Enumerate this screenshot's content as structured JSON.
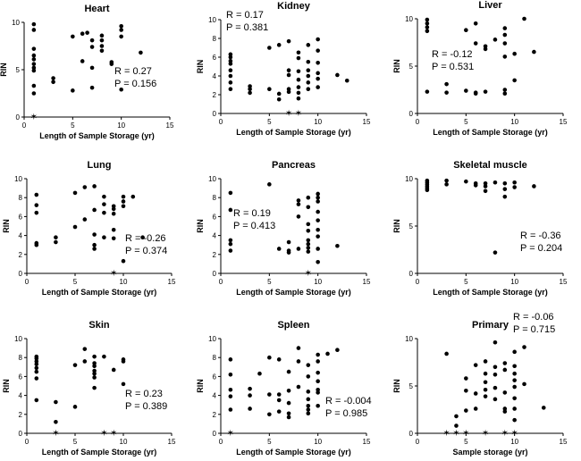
{
  "figure": {
    "background": "#ffffff",
    "point_color": "#000000",
    "zero_marker_color": "#e31a1c"
  },
  "chart_data": [
    {
      "type": "scatter",
      "title": "Heart",
      "xlabel": "Length of Sample Storage (yr)",
      "ylabel": "RIN",
      "xlim": [
        0,
        15
      ],
      "ylim": [
        0,
        10
      ],
      "xticks": [
        0,
        5,
        10,
        15
      ],
      "yticks": [
        0,
        5,
        10
      ],
      "annotation": [
        "R = 0.27",
        "P = 0.156"
      ],
      "points": [
        [
          1,
          9.8
        ],
        [
          1,
          9.2
        ],
        [
          1,
          7.2
        ],
        [
          1,
          6.5
        ],
        [
          1,
          6.1
        ],
        [
          1,
          5.6
        ],
        [
          1,
          5.2
        ],
        [
          1,
          4.9
        ],
        [
          1,
          3.3
        ],
        [
          1,
          2.5
        ],
        [
          3,
          4.1
        ],
        [
          3,
          3.7
        ],
        [
          5,
          8.5
        ],
        [
          5,
          2.8
        ],
        [
          6,
          8.8
        ],
        [
          6,
          5.9
        ],
        [
          6.5,
          8.9
        ],
        [
          7,
          8.1
        ],
        [
          7,
          7.4
        ],
        [
          7,
          5.2
        ],
        [
          7,
          3.1
        ],
        [
          8,
          8.6
        ],
        [
          8,
          8.1
        ],
        [
          8,
          7.5
        ],
        [
          8,
          7.0
        ],
        [
          9,
          5.8
        ],
        [
          9,
          5.6
        ],
        [
          10,
          9.6
        ],
        [
          10,
          9.2
        ],
        [
          10,
          8.5
        ],
        [
          10,
          2.9
        ],
        [
          12,
          6.8
        ]
      ],
      "zero_points": [
        1
      ]
    },
    {
      "type": "scatter",
      "title": "Kidney",
      "xlabel": "Length of Sample Storage (yr)",
      "ylabel": "RIN",
      "xlim": [
        0,
        15
      ],
      "ylim": [
        0,
        10
      ],
      "xticks": [
        0,
        5,
        10,
        15
      ],
      "yticks": [
        0,
        2,
        4,
        6,
        8,
        10
      ],
      "annotation": [
        "R = 0.17",
        "P = 0.381"
      ],
      "points": [
        [
          1,
          6.3
        ],
        [
          1,
          6.0
        ],
        [
          1,
          5.6
        ],
        [
          1,
          5.3
        ],
        [
          1,
          4.6
        ],
        [
          1,
          4.0
        ],
        [
          1,
          3.3
        ],
        [
          1,
          2.6
        ],
        [
          3,
          2.9
        ],
        [
          3,
          2.6
        ],
        [
          3,
          2.2
        ],
        [
          5,
          2.6
        ],
        [
          5,
          7.0
        ],
        [
          6,
          7.3
        ],
        [
          6,
          1.5
        ],
        [
          6,
          2.1
        ],
        [
          7,
          7.7
        ],
        [
          7,
          4.6
        ],
        [
          7,
          4.1
        ],
        [
          7,
          2.6
        ],
        [
          7,
          2.3
        ],
        [
          8,
          6.5
        ],
        [
          8,
          5.9
        ],
        [
          8,
          4.5
        ],
        [
          8,
          3.6
        ],
        [
          8,
          2.8
        ],
        [
          8,
          2.2
        ],
        [
          8,
          1.6
        ],
        [
          9,
          7.3
        ],
        [
          9,
          5.5
        ],
        [
          9,
          4.6
        ],
        [
          9,
          4.0
        ],
        [
          9,
          3.3
        ],
        [
          9,
          2.6
        ],
        [
          10,
          7.9
        ],
        [
          10,
          6.7
        ],
        [
          10,
          5.4
        ],
        [
          10,
          4.3
        ],
        [
          10,
          3.7
        ],
        [
          10,
          2.8
        ],
        [
          12,
          4.1
        ],
        [
          13,
          3.5
        ]
      ],
      "zero_points": [
        7,
        8
      ]
    },
    {
      "type": "scatter",
      "title": "Liver",
      "xlabel": "Length of Sample Storage (yr)",
      "ylabel": "RIN",
      "xlim": [
        0,
        15
      ],
      "ylim": [
        0,
        10
      ],
      "xticks": [
        0,
        5,
        10,
        15
      ],
      "yticks": [
        0,
        5,
        10
      ],
      "annotation": [
        "R = -0.12",
        "P = 0.531"
      ],
      "points": [
        [
          1,
          9.9
        ],
        [
          1,
          9.5
        ],
        [
          1,
          9.1
        ],
        [
          1,
          8.7
        ],
        [
          1,
          2.3
        ],
        [
          3,
          3.1
        ],
        [
          3,
          2.2
        ],
        [
          5,
          8.8
        ],
        [
          5,
          2.4
        ],
        [
          6,
          9.5
        ],
        [
          6,
          7.4
        ],
        [
          6,
          2.1
        ],
        [
          6,
          2.2
        ],
        [
          7,
          7.1
        ],
        [
          7,
          6.8
        ],
        [
          7,
          2.3
        ],
        [
          8,
          7.8
        ],
        [
          9,
          9.0
        ],
        [
          9,
          8.3
        ],
        [
          9,
          7.4
        ],
        [
          9,
          6.0
        ],
        [
          9,
          2.5
        ],
        [
          9,
          2.1
        ],
        [
          10,
          6.3
        ],
        [
          10,
          3.5
        ],
        [
          11,
          10.0
        ],
        [
          12,
          6.5
        ]
      ],
      "zero_points": []
    },
    {
      "type": "scatter",
      "title": "Lung",
      "xlabel": "Length of Sample Storage (yr)",
      "ylabel": "RIN",
      "xlim": [
        0,
        15
      ],
      "ylim": [
        0,
        10
      ],
      "xticks": [
        0,
        5,
        10,
        15
      ],
      "yticks": [
        0,
        2,
        4,
        6,
        8,
        10
      ],
      "annotation": [
        "R = -0.26",
        "P = 0.374"
      ],
      "points": [
        [
          1,
          8.3
        ],
        [
          1,
          7.2
        ],
        [
          1,
          6.4
        ],
        [
          1,
          3.2
        ],
        [
          1,
          3.0
        ],
        [
          3,
          3.8
        ],
        [
          3,
          3.3
        ],
        [
          5,
          8.5
        ],
        [
          5,
          4.9
        ],
        [
          6,
          9.1
        ],
        [
          6,
          5.7
        ],
        [
          7,
          9.2
        ],
        [
          7,
          6.7
        ],
        [
          7,
          4.1
        ],
        [
          7,
          3.0
        ],
        [
          7,
          2.6
        ],
        [
          8,
          8.1
        ],
        [
          8,
          7.3
        ],
        [
          8,
          6.4
        ],
        [
          8,
          3.8
        ],
        [
          9,
          7.1
        ],
        [
          9,
          6.8
        ],
        [
          9,
          6.3
        ],
        [
          9,
          4.6
        ],
        [
          9,
          3.7
        ],
        [
          10,
          8.1
        ],
        [
          10,
          7.6
        ],
        [
          10,
          7.1
        ],
        [
          10,
          1.3
        ],
        [
          11,
          8.1
        ],
        [
          12,
          3.8
        ]
      ],
      "zero_points": [
        9
      ]
    },
    {
      "type": "scatter",
      "title": "Pancreas",
      "xlabel": "Length of Sample Storage (yr)",
      "ylabel": "RIN",
      "xlim": [
        0,
        15
      ],
      "ylim": [
        0,
        10
      ],
      "xticks": [
        0,
        5,
        10,
        15
      ],
      "yticks": [
        0,
        2,
        4,
        6,
        8,
        10
      ],
      "annotation": [
        "R = 0.19",
        "P = 0.413"
      ],
      "points": [
        [
          1,
          8.5
        ],
        [
          1,
          6.7
        ],
        [
          1,
          3.5
        ],
        [
          1,
          3.1
        ],
        [
          1,
          2.4
        ],
        [
          5,
          9.4
        ],
        [
          6,
          2.6
        ],
        [
          7,
          3.3
        ],
        [
          7,
          2.4
        ],
        [
          7,
          2.2
        ],
        [
          8,
          7.7
        ],
        [
          8,
          7.3
        ],
        [
          8,
          6.0
        ],
        [
          8,
          2.6
        ],
        [
          9,
          8.0
        ],
        [
          9,
          7.0
        ],
        [
          9,
          5.2
        ],
        [
          9,
          4.5
        ],
        [
          9,
          3.5
        ],
        [
          9,
          3.1
        ],
        [
          9,
          2.7
        ],
        [
          9,
          2.3
        ],
        [
          10,
          8.4
        ],
        [
          10,
          8.0
        ],
        [
          10,
          7.6
        ],
        [
          10,
          6.5
        ],
        [
          10,
          5.6
        ],
        [
          10,
          4.6
        ],
        [
          10,
          3.9
        ],
        [
          10,
          2.6
        ],
        [
          10,
          1.2
        ],
        [
          12,
          2.9
        ]
      ],
      "zero_points": [
        9
      ]
    },
    {
      "type": "scatter",
      "title": "Skeletal muscle",
      "xlabel": "Length of Sample Storage (yr)",
      "ylabel": "RIN",
      "xlim": [
        0,
        15
      ],
      "ylim": [
        0,
        10
      ],
      "xticks": [
        0,
        5,
        10,
        15
      ],
      "yticks": [
        0,
        5,
        10
      ],
      "annotation": [
        "R = -0.36",
        "P = 0.204"
      ],
      "points": [
        [
          1,
          9.8
        ],
        [
          1,
          9.6
        ],
        [
          1,
          9.4
        ],
        [
          1,
          9.2
        ],
        [
          1,
          9.0
        ],
        [
          1,
          8.8
        ],
        [
          3,
          9.8
        ],
        [
          3,
          9.4
        ],
        [
          5,
          9.7
        ],
        [
          6,
          9.5
        ],
        [
          6,
          9.3
        ],
        [
          7,
          9.5
        ],
        [
          7,
          9.2
        ],
        [
          7,
          8.7
        ],
        [
          8,
          9.6
        ],
        [
          8,
          2.2
        ],
        [
          9,
          9.5
        ],
        [
          9,
          8.9
        ],
        [
          9,
          8.1
        ],
        [
          10,
          9.6
        ],
        [
          10,
          9.1
        ],
        [
          12,
          9.2
        ]
      ],
      "zero_points": []
    },
    {
      "type": "scatter",
      "title": "Skin",
      "xlabel": "Length of Sample Storage (yr)",
      "ylabel": "RIN",
      "xlim": [
        0,
        15
      ],
      "ylim": [
        0,
        10
      ],
      "xticks": [
        0,
        5,
        10,
        15
      ],
      "yticks": [
        0,
        2,
        4,
        6,
        8,
        10
      ],
      "annotation": [
        "R = 0.23",
        "P = 0.389"
      ],
      "points": [
        [
          1,
          8.1
        ],
        [
          1,
          7.9
        ],
        [
          1,
          7.6
        ],
        [
          1,
          7.3
        ],
        [
          1,
          6.9
        ],
        [
          1,
          6.5
        ],
        [
          1,
          5.8
        ],
        [
          1,
          3.5
        ],
        [
          3,
          3.3
        ],
        [
          3,
          1.2
        ],
        [
          5,
          7.2
        ],
        [
          5,
          2.8
        ],
        [
          6,
          8.9
        ],
        [
          6,
          7.6
        ],
        [
          7,
          8.1
        ],
        [
          7,
          7.4
        ],
        [
          7,
          7.1
        ],
        [
          7,
          6.6
        ],
        [
          7,
          6.3
        ],
        [
          7,
          5.9
        ],
        [
          7,
          4.8
        ],
        [
          8,
          8.1
        ],
        [
          9,
          6.7
        ],
        [
          10,
          7.8
        ],
        [
          10,
          7.6
        ],
        [
          10,
          5.2
        ]
      ],
      "zero_points": [
        3,
        8,
        9
      ]
    },
    {
      "type": "scatter",
      "title": "Spleen",
      "xlabel": "Length of Sample Storage (yr)",
      "ylabel": "RIN",
      "xlim": [
        0,
        15
      ],
      "ylim": [
        0,
        10
      ],
      "xticks": [
        0,
        5,
        10,
        15
      ],
      "yticks": [
        0,
        2,
        4,
        6,
        8,
        10
      ],
      "annotation": [
        "R = -0.004",
        "P = 0.985"
      ],
      "points": [
        [
          1,
          7.8
        ],
        [
          1,
          6.2
        ],
        [
          1,
          4.6
        ],
        [
          1,
          3.9
        ],
        [
          1,
          2.5
        ],
        [
          3,
          4.7
        ],
        [
          3,
          4.0
        ],
        [
          3,
          2.6
        ],
        [
          4,
          6.3
        ],
        [
          5,
          8.0
        ],
        [
          5,
          4.1
        ],
        [
          5,
          2.0
        ],
        [
          6,
          7.8
        ],
        [
          6,
          4.1
        ],
        [
          6,
          3.5
        ],
        [
          6,
          2.3
        ],
        [
          7,
          6.5
        ],
        [
          7,
          4.5
        ],
        [
          7,
          3.2
        ],
        [
          7,
          2.1
        ],
        [
          7,
          1.7
        ],
        [
          8,
          9.0
        ],
        [
          8,
          7.6
        ],
        [
          8,
          4.9
        ],
        [
          9,
          7.2
        ],
        [
          9,
          6.0
        ],
        [
          9,
          4.4
        ],
        [
          9,
          3.6
        ],
        [
          9,
          2.9
        ],
        [
          9,
          2.5
        ],
        [
          9,
          2.1
        ],
        [
          10,
          8.3
        ],
        [
          10,
          7.6
        ],
        [
          10,
          6.4
        ],
        [
          10,
          5.5
        ],
        [
          10,
          4.6
        ],
        [
          10,
          4.3
        ],
        [
          10,
          2.9
        ],
        [
          11,
          8.4
        ],
        [
          12,
          8.8
        ]
      ],
      "zero_points": [
        1
      ]
    },
    {
      "type": "scatter",
      "title": "Primary",
      "xlabel": "Sample storage (yr)",
      "ylabel": "RIN",
      "xlim": [
        0,
        15
      ],
      "ylim": [
        0,
        10
      ],
      "xticks": [
        0,
        5,
        10,
        15
      ],
      "yticks": [
        0,
        5,
        10
      ],
      "annotation": [
        "R = -0.06",
        "P = 0.715"
      ],
      "points": [
        [
          3,
          8.4
        ],
        [
          4,
          1.8
        ],
        [
          4,
          0.8
        ],
        [
          5,
          5.8
        ],
        [
          5,
          4.5
        ],
        [
          5,
          2.4
        ],
        [
          6,
          7.2
        ],
        [
          6,
          4.2
        ],
        [
          6,
          2.6
        ],
        [
          7,
          7.6
        ],
        [
          7,
          6.3
        ],
        [
          7,
          5.4
        ],
        [
          7,
          4.6
        ],
        [
          7,
          3.9
        ],
        [
          8,
          9.6
        ],
        [
          8,
          7.0
        ],
        [
          8,
          6.2
        ],
        [
          8,
          4.8
        ],
        [
          8,
          3.6
        ],
        [
          9,
          7.4
        ],
        [
          9,
          6.7
        ],
        [
          9,
          4.3
        ],
        [
          9,
          2.6
        ],
        [
          9,
          2.3
        ],
        [
          10,
          8.6
        ],
        [
          10,
          7.1
        ],
        [
          10,
          6.3
        ],
        [
          10,
          5.6
        ],
        [
          10,
          4.9
        ],
        [
          10,
          3.7
        ],
        [
          10,
          2.6
        ],
        [
          10,
          1.4
        ],
        [
          11,
          9.1
        ],
        [
          11,
          5.2
        ],
        [
          13,
          2.7
        ]
      ],
      "zero_points": [
        3,
        4,
        5,
        7,
        9,
        10
      ]
    }
  ]
}
